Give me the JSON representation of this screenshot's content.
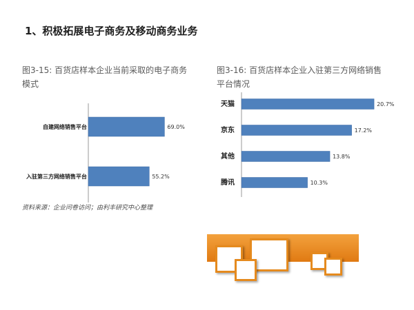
{
  "slide_title": "1、积极拓展电子商务及移动商务业务",
  "captions": {
    "chart1_line1": "图3-15: 百货店样本企业当前采取的电子商务",
    "chart1_line2": "模式",
    "chart2_line1": "图3-16:  百货店样本企业入驻第三方网络销售",
    "chart2_line2": "平台情况"
  },
  "source_note": "资料来源：企业问卷访问；由利丰研究中心整理",
  "colors": {
    "bar": "#4f81bd",
    "bar_stroke": "#3a6aa6",
    "accent": "#e58a1e"
  },
  "chart_data": [
    {
      "type": "bar",
      "orientation": "horizontal",
      "categories": [
        "自建网络销售平台",
        "入驻第三方网络销售平台"
      ],
      "values": [
        69.0,
        55.2
      ],
      "value_labels": [
        "69.0%",
        "55.2%"
      ],
      "unit": "%",
      "xlim": [
        0,
        100
      ]
    },
    {
      "type": "bar",
      "orientation": "horizontal",
      "categories": [
        "天猫",
        "京东",
        "其他",
        "腾讯"
      ],
      "values": [
        20.7,
        17.2,
        13.8,
        10.3
      ],
      "value_labels": [
        "20.7%",
        "17.2%",
        "13.8%",
        "10.3%"
      ],
      "unit": "%",
      "xlim": [
        0,
        25
      ]
    }
  ]
}
